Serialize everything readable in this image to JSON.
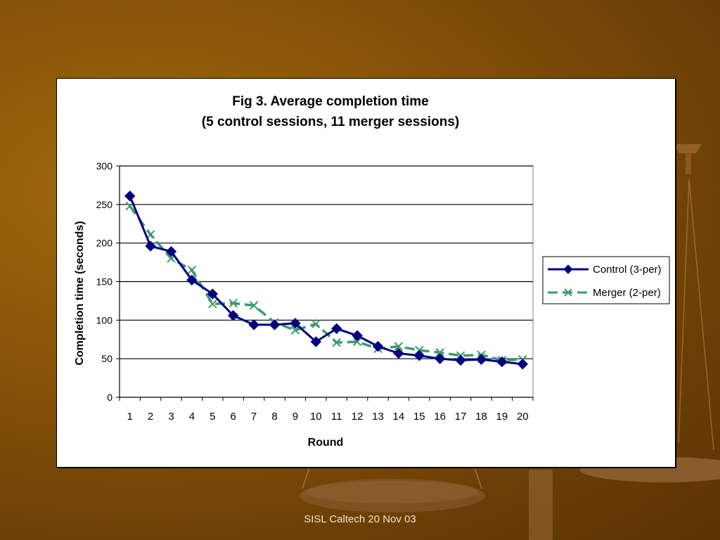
{
  "footer": {
    "text": "SISL Caltech 20 Nov 03"
  },
  "colors": {
    "control": "#000080",
    "merger": "#3a9a6e",
    "background": "#7a4a08"
  },
  "chart_data": {
    "type": "line",
    "title": "Fig 3. Average completion time",
    "subtitle": "(5 control sessions, 11 merger sessions)",
    "xlabel": "Round",
    "ylabel": "Completion time (seconds)",
    "ylim": [
      0,
      300
    ],
    "yticks": [
      0,
      50,
      100,
      150,
      200,
      250,
      300
    ],
    "categories": [
      "1",
      "2",
      "3",
      "4",
      "5",
      "6",
      "7",
      "8",
      "9",
      "10",
      "11",
      "12",
      "13",
      "14",
      "15",
      "16",
      "17",
      "18",
      "19",
      "20"
    ],
    "grid": true,
    "legend_position": "right",
    "series": [
      {
        "name": "Control (3-per)",
        "marker": "diamond",
        "line": "solid",
        "values": [
          261,
          196,
          189,
          152,
          134,
          106,
          94,
          94,
          96,
          72,
          89,
          80,
          66,
          57,
          54,
          50,
          48,
          49,
          46,
          43
        ]
      },
      {
        "name": "Merger (2-per)",
        "marker": "x",
        "line": "dashed",
        "values": [
          248,
          211,
          180,
          165,
          121,
          122,
          119,
          97,
          87,
          95,
          71,
          72,
          63,
          66,
          61,
          58,
          54,
          55,
          48,
          49
        ]
      }
    ]
  }
}
